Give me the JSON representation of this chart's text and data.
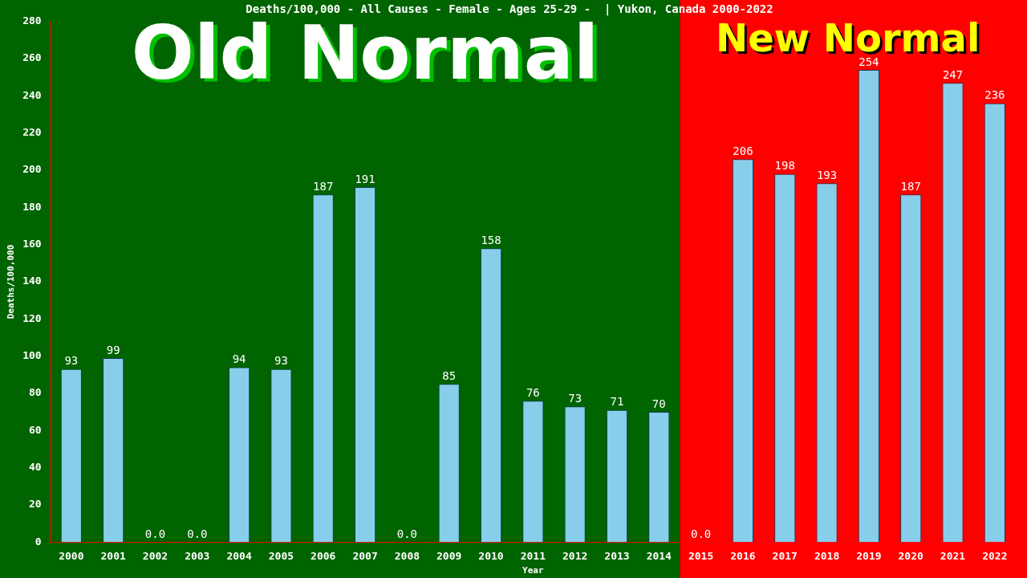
{
  "chart_data": {
    "type": "bar",
    "title": "Deaths/100,000 - All Causes - Female - Ages 25-29 -  | Yukon, Canada 2000-2022",
    "xlabel": "Year",
    "ylabel": "Deaths/100,000",
    "categories": [
      "2000",
      "2001",
      "2002",
      "2003",
      "2004",
      "2005",
      "2006",
      "2007",
      "2008",
      "2009",
      "2010",
      "2011",
      "2012",
      "2013",
      "2014",
      "2015",
      "2016",
      "2017",
      "2018",
      "2019",
      "2020",
      "2021",
      "2022"
    ],
    "values": [
      93,
      99,
      0,
      0,
      94,
      93,
      187,
      191,
      0,
      85,
      158,
      76,
      73,
      71,
      70,
      0,
      206,
      198,
      193,
      254,
      187,
      247,
      236
    ],
    "value_labels": [
      "93",
      "99",
      "0.0",
      "0.0",
      "94",
      "93",
      "187",
      "191",
      "0.0",
      "85",
      "158",
      "76",
      "73",
      "71",
      "70",
      "0.0",
      "206",
      "198",
      "193",
      "254",
      "187",
      "247",
      "236"
    ],
    "color": "#87ceeb",
    "ylim": [
      0,
      280
    ],
    "yticks": [
      0,
      20,
      40,
      60,
      80,
      100,
      120,
      140,
      160,
      180,
      200,
      220,
      240,
      260,
      280
    ],
    "grid": false,
    "legend": false,
    "bands": [
      {
        "axis": "x",
        "from": "2000",
        "to": "2014",
        "label": "Old Normal",
        "color": "#006400"
      },
      {
        "axis": "x",
        "from": "2015",
        "to": "2022",
        "label": "New Normal",
        "color": "#ff0000"
      }
    ]
  }
}
